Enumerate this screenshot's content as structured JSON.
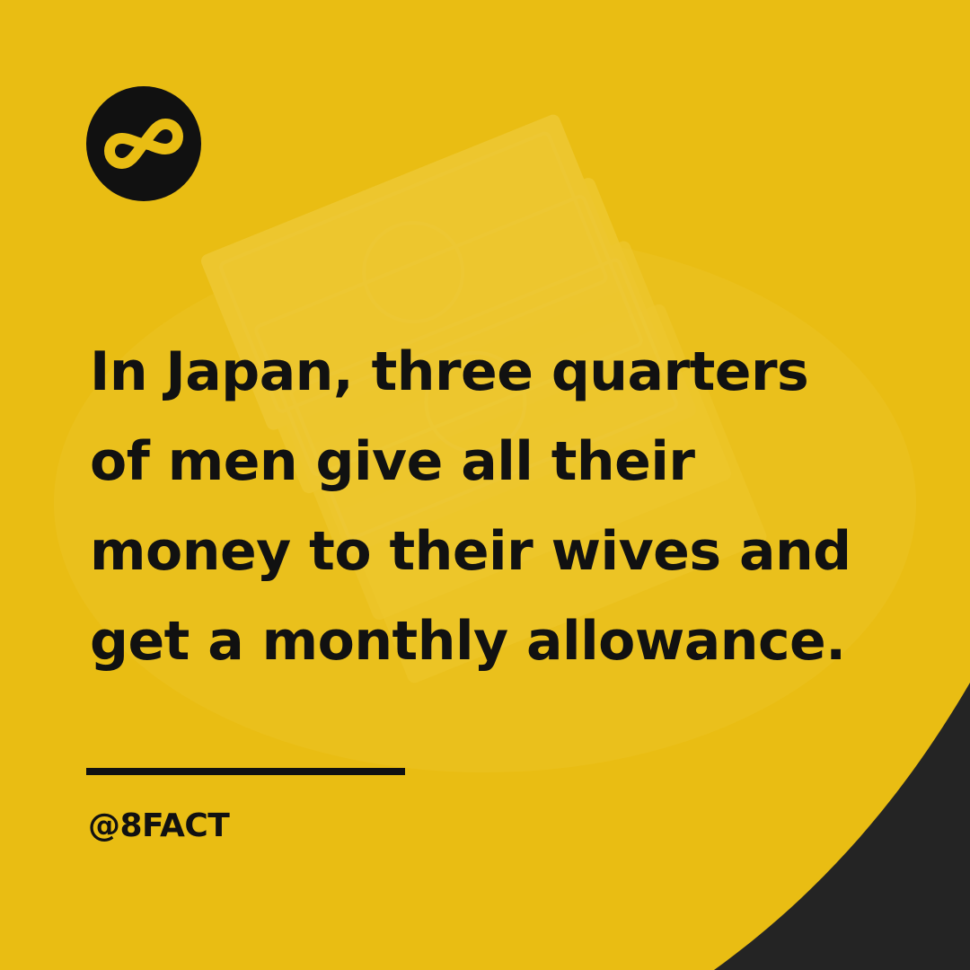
{
  "post": {
    "fact_text": "In Japan, three quarters\nof men give all their\nmoney to their wives and\nget a monthly allowance.",
    "handle": "@8FACT"
  },
  "logo": {
    "icon": "infinity-eight-icon",
    "text": "8"
  },
  "background": {
    "icon": "money-bills-icon"
  },
  "colors": {
    "background": "#e9bd13",
    "text": "#111111",
    "logo_circle": "#111111",
    "logo_glyph": "#e9bd13",
    "corner_swoosh": "#242424"
  }
}
